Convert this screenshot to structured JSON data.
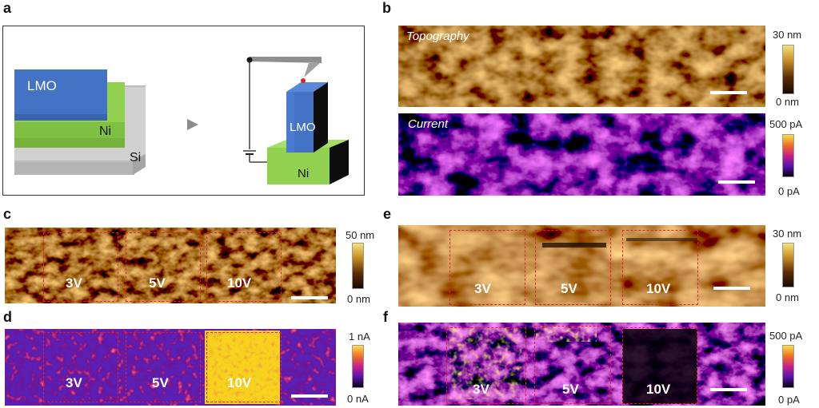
{
  "panels": {
    "a": {
      "label": "a",
      "layers": {
        "lmo": "LMO",
        "ni": "Ni",
        "si": "Si"
      },
      "tip_labels": {
        "lmo": "LMO",
        "ni": "Ni"
      }
    },
    "b": {
      "label": "b",
      "topography_title": "Topography",
      "current_title": "Current",
      "topo_cbar": {
        "max": "30 nm",
        "min": "0 nm"
      },
      "current_cbar": {
        "max": "500 pA",
        "min": "0 pA"
      }
    },
    "c": {
      "label": "c",
      "regions": [
        "3V",
        "5V",
        "10V"
      ],
      "cbar": {
        "max": "50 nm",
        "min": "0 nm"
      }
    },
    "d": {
      "label": "d",
      "regions": [
        "3V",
        "5V",
        "10V"
      ],
      "cbar": {
        "max": "1 nA",
        "min": "0 nA"
      }
    },
    "e": {
      "label": "e",
      "regions": [
        "3V",
        "5V",
        "10V"
      ],
      "cbar": {
        "max": "30 nm",
        "min": "0 nm"
      }
    },
    "f": {
      "label": "f",
      "regions": [
        "3V",
        "5V",
        "10V"
      ],
      "cbar": {
        "max": "500 pA",
        "min": "0 pA"
      }
    }
  },
  "colors": {
    "lmo": "#4472c4",
    "ni": "#92d050",
    "si": "#c8c8c8",
    "region_border": "#e0202a"
  }
}
